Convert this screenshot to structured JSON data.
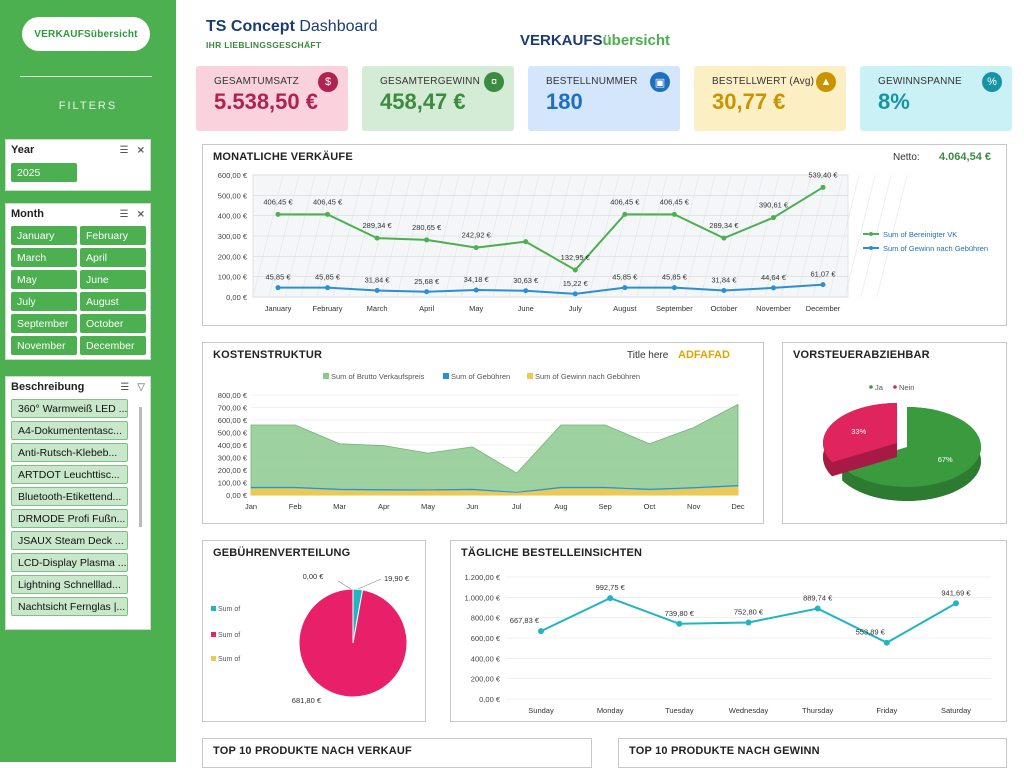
{
  "sidebar": {
    "title_pill": "VERKAUFSübersicht",
    "filters_label": "FILTERS",
    "year": {
      "header": "Year",
      "options": [
        "2025"
      ]
    },
    "month": {
      "header": "Month",
      "options": [
        "January",
        "February",
        "March",
        "April",
        "May",
        "June",
        "July",
        "August",
        "September",
        "October",
        "November",
        "December"
      ]
    },
    "beschreibung": {
      "header": "Beschreibung",
      "options": [
        "360° Warmweiß LED ...",
        "A4-Dokumententasc...",
        "Anti-Rutsch-Klebeb...",
        "ARTDOT Leuchttisc...",
        "Bluetooth-Etikettend...",
        "DRMODE Profi Fußn...",
        "JSAUX Steam Deck ...",
        "LCD-Display Plasma ...",
        "Lightning Schnelllad...",
        "Nachtsicht Fernglas |..."
      ]
    }
  },
  "header": {
    "title_bold": "TS Concept",
    "title_rest": " Dashboard",
    "subtitle": "IHR LIEBLINGSGESCHÄFT",
    "section_bold": "VERKAUFS",
    "section_rest": "übersicht"
  },
  "kpis": [
    {
      "label": "GESAMTUMSATZ",
      "value": "5.538,50 €",
      "bg": "#f9d2dd",
      "fg": "#b0234e",
      "icon": "money-bag-icon"
    },
    {
      "label": "GESAMTERGEWINN",
      "value": "458,47 €",
      "bg": "#d4ecd5",
      "fg": "#3d8b40",
      "icon": "coins-icon"
    },
    {
      "label": "BESTELLNUMMER",
      "value": "180",
      "bg": "#d3e6fb",
      "fg": "#1f6fbf",
      "icon": "shopping-bag-icon"
    },
    {
      "label": "BESTELLWERT (Avg)",
      "value": "30,77 €",
      "bg": "#fdefc4",
      "fg": "#c99400",
      "icon": "chart-icon"
    },
    {
      "label": "GEWINNSPANNE",
      "value": "8%",
      "bg": "#c9f1f6",
      "fg": "#1893a3",
      "icon": "percent-icon"
    }
  ],
  "monthly": {
    "title": "MONATLICHE VERKÄUFE",
    "netto_label": "Netto:",
    "netto_value": "4.064,54 €"
  },
  "kosten": {
    "title": "KOSTENSTRUKTUR",
    "title_here": "Title here",
    "accent": "ADFAFAD"
  },
  "vorsteuer": {
    "title": "VORSTEUERABZIEHBAR"
  },
  "gebuehren": {
    "title": "GEBÜHRENVERTEILUNG"
  },
  "taeglich": {
    "title": "TÄGLICHE BESTELLEINSICHTEN"
  },
  "top_verkauf": {
    "title": "TOP 10 PRODUKTE NACH VERKAUF"
  },
  "top_gewinn": {
    "title": "TOP 10 PRODUKTE NACH GEWINN"
  },
  "chart_data": [
    {
      "type": "line",
      "categories": [
        "January",
        "February",
        "March",
        "April",
        "May",
        "June",
        "July",
        "August",
        "September",
        "October",
        "November",
        "December"
      ],
      "series": [
        {
          "name": "Sum of Bereinigter VK",
          "values": [
            406.45,
            406.45,
            289.34,
            280.65,
            242.92,
            272.05,
            132.95,
            406.45,
            406.45,
            289.34,
            390.61,
            539.4
          ],
          "labels": [
            "406,45 €",
            "406,45 €",
            "289,34 €",
            "280,65 €",
            "242,92 €",
            "",
            "132,95 €",
            "406,45 €",
            "406,45 €",
            "289,34 €",
            "390,61 €",
            "539,40 €"
          ],
          "color": "#4caf50"
        },
        {
          "name": "Sum of Gewinn nach Gebühren",
          "values": [
            45.85,
            45.85,
            31.84,
            25.68,
            34.18,
            30.63,
            15.22,
            45.85,
            45.85,
            31.84,
            44.64,
            61.07
          ],
          "labels": [
            "45,85 €",
            "45,85 €",
            "31,84 €",
            "25,68 €",
            "34,18 €",
            "30,63 €",
            "15,22 €",
            "45,85 €",
            "45,85 €",
            "31,84 €",
            "44,64 €",
            "61,07 €"
          ],
          "color": "#2b8fd6"
        }
      ],
      "yticks": [
        "0,00 €",
        "100,00 €",
        "200,00 €",
        "300,00 €",
        "400,00 €",
        "500,00 €",
        "600,00 €"
      ],
      "ylim": [
        0,
        600
      ],
      "legend": "right"
    },
    {
      "type": "area",
      "categories": [
        "Jan",
        "Feb",
        "Mar",
        "Apr",
        "May",
        "Jun",
        "Jul",
        "Aug",
        "Sep",
        "Oct",
        "Nov",
        "Dec"
      ],
      "series": [
        {
          "name": "Sum of Brutto Verkaufspreis",
          "values": [
            560,
            560,
            410,
            395,
            335,
            385,
            175,
            560,
            560,
            410,
            540,
            725
          ],
          "color": "#8cc98f"
        },
        {
          "name": "Sum of Gebühren",
          "values": [
            60,
            60,
            45,
            42,
            40,
            45,
            20,
            60,
            60,
            45,
            58,
            75
          ],
          "color": "#2b8fd6"
        },
        {
          "name": "Sum of Gewinn nach Gebühren",
          "values": [
            46,
            46,
            32,
            26,
            34,
            31,
            15,
            46,
            46,
            32,
            45,
            61
          ],
          "color": "#f5c84c"
        }
      ],
      "yticks": [
        "0,00 €",
        "100,00 €",
        "200,00 €",
        "300,00 €",
        "400,00 €",
        "500,00 €",
        "600,00 €",
        "700,00 €",
        "800,00 €"
      ],
      "ylim": [
        0,
        800
      ],
      "legend": "top"
    },
    {
      "type": "pie",
      "categories": [
        "Ja",
        "Nein"
      ],
      "values": [
        67,
        33
      ],
      "labels": [
        "67%",
        "33%"
      ],
      "colors": [
        "#3a9a3e",
        "#e0245e"
      ],
      "legend": "top"
    },
    {
      "type": "pie",
      "categories": [
        "Sum of eBay-Gebühren",
        "Sum of Werbegebühren",
        "Sum of Andere Gebühren"
      ],
      "values": [
        19.9,
        681.8,
        0.0
      ],
      "labels": [
        "19,90 €",
        "681,80 €",
        "0,00 €"
      ],
      "colors": [
        "#1fb5c4",
        "#e8206a",
        "#f5c84c"
      ],
      "legend": "left"
    },
    {
      "type": "line",
      "categories": [
        "Sunday",
        "Monday",
        "Tuesday",
        "Wednesday",
        "Thursday",
        "Friday",
        "Saturday"
      ],
      "series": [
        {
          "values": [
            667.83,
            992.75,
            739.8,
            752.8,
            889.74,
            553.89,
            941.69
          ],
          "labels": [
            "667,83 €",
            "992,75 €",
            "739,80 €",
            "752,80 €",
            "889,74 €",
            "553,89 €",
            "941,69 €"
          ],
          "color": "#1fb5c4"
        }
      ],
      "yticks": [
        "0,00 €",
        "200,00 €",
        "400,00 €",
        "600,00 €",
        "800,00 €",
        "1.000,00 €",
        "1.200,00 €"
      ],
      "ylim": [
        0,
        1200
      ]
    }
  ]
}
